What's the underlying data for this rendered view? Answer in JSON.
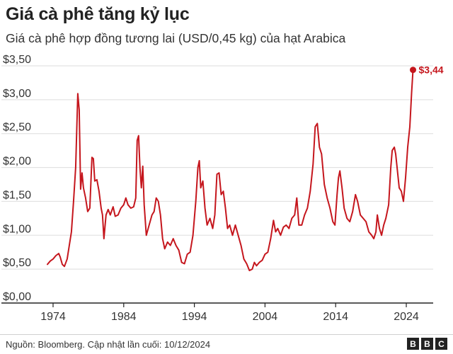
{
  "title": "Giá cà phê tăng kỷ lục",
  "subtitle": "Giá cà phê hợp đồng tương lai (USD/0,45 kg) của hạt Arabica",
  "source": "Nguồn: Bloomberg. Cập nhật lần cuối: 10/12/2024",
  "logo": [
    "B",
    "B",
    "C"
  ],
  "colors": {
    "line": "#c5161d",
    "grid": "#dddddd",
    "axis": "#222222",
    "text": "#333333"
  },
  "chart_data": {
    "type": "line",
    "title": "Giá cà phê tăng kỷ lục",
    "subtitle": "Giá cà phê hợp đồng tương lai (USD/0,45 kg) của hạt Arabica",
    "xlim": [
      1973.2,
      2025.0
    ],
    "ylim": [
      0,
      3.5
    ],
    "x_ticks": [
      1974,
      1984,
      1994,
      2004,
      2014,
      2024
    ],
    "x_tick_labels": [
      "1974",
      "1984",
      "1994",
      "2004",
      "2014",
      "2024"
    ],
    "y_ticks": [
      0,
      0.5,
      1.0,
      1.5,
      2.0,
      2.5,
      3.0,
      3.5
    ],
    "y_tick_labels": [
      "$0,00",
      "$0,50",
      "$1,00",
      "$1,50",
      "$2,00",
      "$2,50",
      "$3,00",
      "$3,50"
    ],
    "grid": true,
    "annotation": {
      "x": 2024.95,
      "y": 3.44,
      "label": "$3,44"
    },
    "series": [
      {
        "color": "#c5161d",
        "points": [
          [
            1973.2,
            0.57
          ],
          [
            1973.6,
            0.62
          ],
          [
            1974.0,
            0.65
          ],
          [
            1974.4,
            0.7
          ],
          [
            1974.8,
            0.73
          ],
          [
            1975.0,
            0.68
          ],
          [
            1975.3,
            0.57
          ],
          [
            1975.6,
            0.54
          ],
          [
            1976.0,
            0.65
          ],
          [
            1976.3,
            0.85
          ],
          [
            1976.6,
            1.05
          ],
          [
            1976.9,
            1.5
          ],
          [
            1977.2,
            2.0
          ],
          [
            1977.5,
            3.09
          ],
          [
            1977.7,
            2.85
          ],
          [
            1977.9,
            1.68
          ],
          [
            1978.1,
            1.92
          ],
          [
            1978.3,
            1.7
          ],
          [
            1978.6,
            1.55
          ],
          [
            1978.9,
            1.35
          ],
          [
            1979.2,
            1.4
          ],
          [
            1979.5,
            2.15
          ],
          [
            1979.7,
            2.13
          ],
          [
            1979.9,
            1.8
          ],
          [
            1980.2,
            1.82
          ],
          [
            1980.5,
            1.65
          ],
          [
            1980.8,
            1.4
          ],
          [
            1981.0,
            1.3
          ],
          [
            1981.2,
            0.95
          ],
          [
            1981.5,
            1.3
          ],
          [
            1981.8,
            1.38
          ],
          [
            1982.1,
            1.3
          ],
          [
            1982.5,
            1.42
          ],
          [
            1982.8,
            1.28
          ],
          [
            1983.2,
            1.3
          ],
          [
            1983.6,
            1.4
          ],
          [
            1984.0,
            1.45
          ],
          [
            1984.3,
            1.55
          ],
          [
            1984.6,
            1.45
          ],
          [
            1985.0,
            1.4
          ],
          [
            1985.4,
            1.42
          ],
          [
            1985.7,
            1.55
          ],
          [
            1985.9,
            2.4
          ],
          [
            1986.1,
            2.47
          ],
          [
            1986.3,
            2.0
          ],
          [
            1986.5,
            1.7
          ],
          [
            1986.7,
            2.02
          ],
          [
            1986.9,
            1.45
          ],
          [
            1987.2,
            1.0
          ],
          [
            1987.6,
            1.15
          ],
          [
            1988.0,
            1.3
          ],
          [
            1988.3,
            1.35
          ],
          [
            1988.6,
            1.55
          ],
          [
            1988.9,
            1.5
          ],
          [
            1989.2,
            1.3
          ],
          [
            1989.5,
            0.95
          ],
          [
            1989.8,
            0.8
          ],
          [
            1990.2,
            0.9
          ],
          [
            1990.6,
            0.85
          ],
          [
            1991.0,
            0.95
          ],
          [
            1991.4,
            0.85
          ],
          [
            1991.8,
            0.78
          ],
          [
            1992.2,
            0.6
          ],
          [
            1992.6,
            0.58
          ],
          [
            1993.0,
            0.72
          ],
          [
            1993.4,
            0.75
          ],
          [
            1993.8,
            1.0
          ],
          [
            1994.2,
            1.5
          ],
          [
            1994.5,
            2.0
          ],
          [
            1994.7,
            2.1
          ],
          [
            1994.9,
            1.7
          ],
          [
            1995.2,
            1.8
          ],
          [
            1995.5,
            1.4
          ],
          [
            1995.8,
            1.15
          ],
          [
            1996.2,
            1.25
          ],
          [
            1996.6,
            1.1
          ],
          [
            1996.9,
            1.3
          ],
          [
            1997.2,
            1.9
          ],
          [
            1997.5,
            1.92
          ],
          [
            1997.8,
            1.6
          ],
          [
            1998.1,
            1.65
          ],
          [
            1998.4,
            1.4
          ],
          [
            1998.7,
            1.1
          ],
          [
            1999.0,
            1.15
          ],
          [
            1999.4,
            1.0
          ],
          [
            1999.8,
            1.15
          ],
          [
            2000.2,
            1.0
          ],
          [
            2000.6,
            0.85
          ],
          [
            2001.0,
            0.65
          ],
          [
            2001.4,
            0.58
          ],
          [
            2001.8,
            0.48
          ],
          [
            2002.2,
            0.5
          ],
          [
            2002.5,
            0.6
          ],
          [
            2002.8,
            0.55
          ],
          [
            2003.2,
            0.6
          ],
          [
            2003.6,
            0.63
          ],
          [
            2004.0,
            0.72
          ],
          [
            2004.4,
            0.75
          ],
          [
            2004.8,
            0.95
          ],
          [
            2005.2,
            1.22
          ],
          [
            2005.5,
            1.05
          ],
          [
            2005.8,
            1.1
          ],
          [
            2006.2,
            1.0
          ],
          [
            2006.6,
            1.12
          ],
          [
            2007.0,
            1.15
          ],
          [
            2007.4,
            1.1
          ],
          [
            2007.8,
            1.25
          ],
          [
            2008.2,
            1.3
          ],
          [
            2008.5,
            1.55
          ],
          [
            2008.8,
            1.15
          ],
          [
            2009.2,
            1.15
          ],
          [
            2009.6,
            1.3
          ],
          [
            2010.0,
            1.4
          ],
          [
            2010.4,
            1.65
          ],
          [
            2010.8,
            2.05
          ],
          [
            2011.1,
            2.6
          ],
          [
            2011.4,
            2.65
          ],
          [
            2011.7,
            2.3
          ],
          [
            2012.0,
            2.2
          ],
          [
            2012.4,
            1.75
          ],
          [
            2012.8,
            1.55
          ],
          [
            2013.2,
            1.4
          ],
          [
            2013.6,
            1.2
          ],
          [
            2013.9,
            1.15
          ],
          [
            2014.2,
            1.6
          ],
          [
            2014.4,
            1.85
          ],
          [
            2014.6,
            1.95
          ],
          [
            2014.9,
            1.7
          ],
          [
            2015.2,
            1.4
          ],
          [
            2015.6,
            1.25
          ],
          [
            2016.0,
            1.2
          ],
          [
            2016.4,
            1.35
          ],
          [
            2016.8,
            1.6
          ],
          [
            2017.1,
            1.5
          ],
          [
            2017.5,
            1.3
          ],
          [
            2017.9,
            1.25
          ],
          [
            2018.3,
            1.2
          ],
          [
            2018.7,
            1.05
          ],
          [
            2019.1,
            1.0
          ],
          [
            2019.4,
            0.95
          ],
          [
            2019.7,
            1.05
          ],
          [
            2019.9,
            1.3
          ],
          [
            2020.2,
            1.1
          ],
          [
            2020.5,
            1.0
          ],
          [
            2020.8,
            1.15
          ],
          [
            2021.1,
            1.25
          ],
          [
            2021.5,
            1.45
          ],
          [
            2021.8,
            2.0
          ],
          [
            2022.0,
            2.25
          ],
          [
            2022.3,
            2.3
          ],
          [
            2022.5,
            2.2
          ],
          [
            2022.8,
            1.9
          ],
          [
            2023.0,
            1.7
          ],
          [
            2023.3,
            1.65
          ],
          [
            2023.6,
            1.5
          ],
          [
            2023.9,
            1.85
          ],
          [
            2024.2,
            2.3
          ],
          [
            2024.5,
            2.6
          ],
          [
            2024.75,
            3.1
          ],
          [
            2024.95,
            3.44
          ]
        ]
      }
    ]
  }
}
